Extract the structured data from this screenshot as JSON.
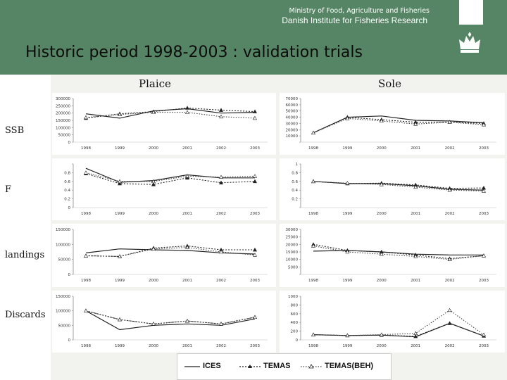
{
  "header": {
    "ministry": "Ministry of Food, Agriculture and Fisheries",
    "institute": "Danish Institute for Fisheries Research",
    "title": "Historic period 1998-2003 : validation trials",
    "background_color": "#558564",
    "crest_icon": "crown-crest-icon"
  },
  "columns": [
    "Plaice",
    "Sole"
  ],
  "rows": [
    "SSB",
    "F",
    "landings",
    "Discards"
  ],
  "legend": {
    "ices": "ICES",
    "temas": "TEMAS",
    "temas_beh": "TEMAS(BEH)"
  },
  "chart_data": [
    {
      "type": "line",
      "species": "Plaice",
      "metric": "SSB",
      "x": [
        "1998",
        "1999",
        "2000",
        "2001",
        "2002",
        "2003"
      ],
      "yticks": [
        "0",
        "50000",
        "100000",
        "150000",
        "200000",
        "250000",
        "300000"
      ],
      "ylim": [
        0,
        300000
      ],
      "series": [
        {
          "name": "ICES",
          "values": [
            195000,
            165000,
            215000,
            230000,
            200000,
            205000
          ]
        },
        {
          "name": "TEMAS",
          "values": [
            165000,
            195000,
            210000,
            235000,
            220000,
            210000
          ]
        },
        {
          "name": "TEMAS(BEH)",
          "values": [
            170000,
            190000,
            205000,
            205000,
            175000,
            165000
          ]
        }
      ]
    },
    {
      "type": "line",
      "species": "Sole",
      "metric": "SSB",
      "x": [
        "1998",
        "1999",
        "2000",
        "2001",
        "2002",
        "2003"
      ],
      "yticks": [
        "",
        "10000",
        "20000",
        "30000",
        "40000",
        "50000",
        "60000",
        "70000"
      ],
      "ylim": [
        0,
        70000
      ],
      "series": [
        {
          "name": "ICES",
          "values": [
            15000,
            40000,
            42000,
            35000,
            34000,
            31000
          ]
        },
        {
          "name": "TEMAS",
          "values": [
            15000,
            40000,
            36000,
            32000,
            32000,
            30000
          ]
        },
        {
          "name": "TEMAS(BEH)",
          "values": [
            15000,
            38000,
            34000,
            29000,
            32000,
            28000
          ]
        }
      ]
    },
    {
      "type": "line",
      "species": "Plaice",
      "metric": "F",
      "x": [
        "1998",
        "1999",
        "2000",
        "2001",
        "2002",
        "2003"
      ],
      "yticks": [
        "0",
        "0.2",
        "0.4",
        "0.6",
        "0.8",
        ""
      ],
      "ylim": [
        0,
        1
      ],
      "series": [
        {
          "name": "ICES",
          "values": [
            0.9,
            0.58,
            0.62,
            0.75,
            0.68,
            0.68
          ]
        },
        {
          "name": "TEMAS",
          "values": [
            0.78,
            0.55,
            0.53,
            0.68,
            0.57,
            0.6
          ]
        },
        {
          "name": "TEMAS(BEH)",
          "values": [
            0.8,
            0.6,
            0.6,
            0.72,
            0.7,
            0.72
          ]
        }
      ]
    },
    {
      "type": "line",
      "species": "Sole",
      "metric": "F",
      "x": [
        "1998",
        "1999",
        "2000",
        "2001",
        "2002",
        "2003"
      ],
      "yticks": [
        "",
        "0.2",
        "0.4",
        "0.6",
        "0.8",
        "1"
      ],
      "ylim": [
        0,
        1
      ],
      "series": [
        {
          "name": "ICES",
          "values": [
            0.6,
            0.55,
            0.55,
            0.5,
            0.42,
            0.4
          ]
        },
        {
          "name": "TEMAS",
          "values": [
            0.6,
            0.55,
            0.56,
            0.52,
            0.44,
            0.45
          ]
        },
        {
          "name": "TEMAS(BEH)",
          "values": [
            0.6,
            0.56,
            0.53,
            0.47,
            0.4,
            0.38
          ]
        }
      ]
    },
    {
      "type": "line",
      "species": "Plaice",
      "metric": "landings",
      "x": [
        "1998",
        "1999",
        "2000",
        "2001",
        "2002",
        "2003"
      ],
      "yticks": [
        "0",
        "50000",
        "100000",
        "150000"
      ],
      "ylim": [
        0,
        150000
      ],
      "series": [
        {
          "name": "ICES",
          "values": [
            72000,
            85000,
            82000,
            80000,
            72000,
            68000
          ]
        },
        {
          "name": "TEMAS",
          "values": [
            62000,
            60000,
            88000,
            95000,
            82000,
            82000
          ]
        },
        {
          "name": "TEMAS(BEH)",
          "values": [
            62000,
            60000,
            85000,
            90000,
            75000,
            65000
          ]
        }
      ]
    },
    {
      "type": "line",
      "species": "Sole",
      "metric": "landings",
      "x": [
        "1998",
        "1999",
        "2000",
        "2001",
        "2002",
        "2003"
      ],
      "yticks": [
        "",
        "5000",
        "10000",
        "15000",
        "20000",
        "25000",
        "30000"
      ],
      "ylim": [
        0,
        30000
      ],
      "series": [
        {
          "name": "ICES",
          "values": [
            15500,
            16000,
            15000,
            13500,
            13000,
            13000
          ]
        },
        {
          "name": "TEMAS",
          "values": [
            20000,
            16000,
            15000,
            13000,
            10500,
            12500
          ]
        },
        {
          "name": "TEMAS(BEH)",
          "values": [
            19000,
            15000,
            13500,
            12000,
            10000,
            12500
          ]
        }
      ]
    },
    {
      "type": "line",
      "species": "Plaice",
      "metric": "Discards",
      "x": [
        "1998",
        "1999",
        "2000",
        "2001",
        "2002",
        "2003"
      ],
      "yticks": [
        "0",
        "50000",
        "100000",
        "150000"
      ],
      "ylim": [
        0,
        150000
      ],
      "series": [
        {
          "name": "ICES",
          "values": [
            100000,
            35000,
            50000,
            55000,
            50000,
            72000
          ]
        },
        {
          "name": "TEMAS",
          "values": [
            100000,
            70000,
            55000,
            65000,
            55000,
            78000
          ]
        },
        {
          "name": "TEMAS(BEH)",
          "values": [
            100000,
            70000,
            55000,
            65000,
            55000,
            78000
          ]
        }
      ]
    },
    {
      "type": "line",
      "species": "Sole",
      "metric": "Discards",
      "x": [
        "1998",
        "1999",
        "2000",
        "2001",
        "2002",
        "2003"
      ],
      "yticks": [
        "0",
        "200",
        "400",
        "600",
        "800",
        "1000"
      ],
      "ylim": [
        0,
        1000
      ],
      "series": [
        {
          "name": "ICES",
          "values": [
            120,
            100,
            110,
            70,
            380,
            90
          ]
        },
        {
          "name": "TEMAS",
          "values": [
            120,
            100,
            110,
            80,
            380,
            90
          ]
        },
        {
          "name": "TEMAS(BEH)",
          "values": [
            120,
            100,
            120,
            150,
            680,
            120
          ]
        }
      ]
    }
  ]
}
